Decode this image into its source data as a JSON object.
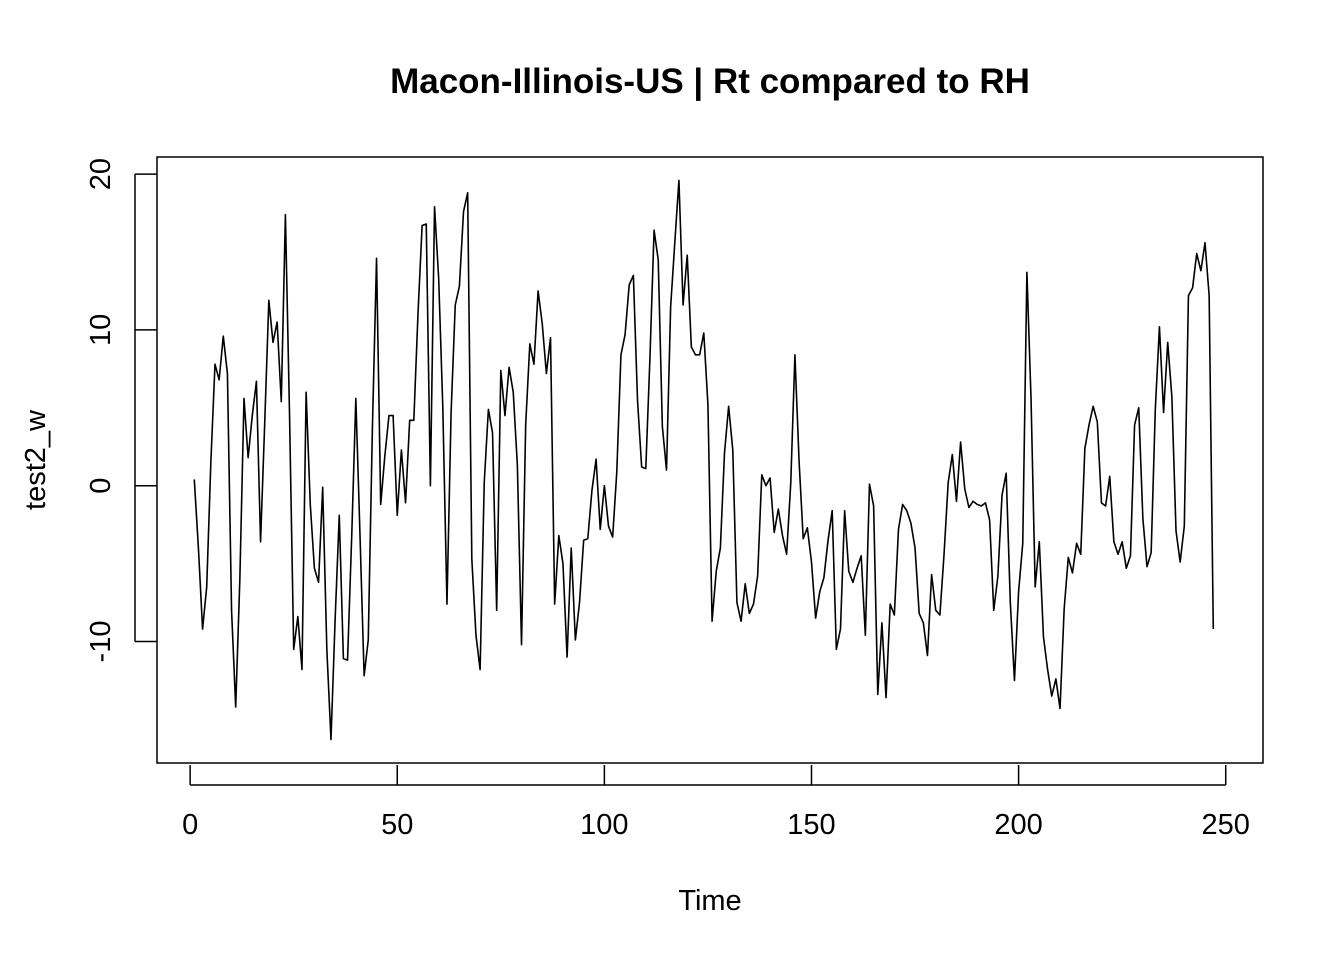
{
  "chart_data": {
    "type": "line",
    "title": "Macon-Illinois-US | Rt compared to RH",
    "xlabel": "Time",
    "ylabel": "test2_w",
    "xlim": [
      -8,
      259
    ],
    "ylim": [
      -17.8,
      21.1
    ],
    "x_ticks": [
      0,
      50,
      100,
      150,
      200,
      250
    ],
    "y_ticks": [
      -10,
      0,
      10,
      20
    ],
    "grid": false,
    "legend": "none",
    "line_color": "#000000",
    "x_start": 1,
    "values": [
      0.4,
      -4,
      -9.2,
      -6.5,
      1.5,
      7.8,
      6.8,
      9.6,
      7.2,
      -8,
      -14.2,
      -6,
      5.6,
      1.8,
      4.5,
      6.7,
      -3.6,
      4,
      11.9,
      9.2,
      10.5,
      5.4,
      17.4,
      4.5,
      -10.5,
      -8.4,
      -11.8,
      6,
      -1.2,
      -5.3,
      -6.2,
      -0.1,
      -10.5,
      -16.3,
      -8.6,
      -1.9,
      -11.1,
      -11.2,
      -3.3,
      5.6,
      -3.1,
      -12.2,
      -9.9,
      3.7,
      14.6,
      -1.2,
      1.9,
      4.5,
      4.5,
      -1.9,
      2.3,
      -1.1,
      4.2,
      4.2,
      11,
      16.7,
      16.8,
      0,
      17.9,
      13.3,
      5,
      -7.6,
      4.7,
      11.6,
      12.8,
      17.6,
      18.8,
      -4.7,
      -9.6,
      -11.8,
      0.2,
      4.9,
      3.4,
      -8,
      7.4,
      4.5,
      7.6,
      6,
      1.3,
      -10.2,
      3.9,
      9.1,
      7.8,
      12.5,
      10.4,
      7.2,
      9.5,
      -7.6,
      -3.2,
      -5,
      -11,
      -4,
      -9.9,
      -7.5,
      -3.5,
      -3.4,
      -0.3,
      1.7,
      -2.8,
      0,
      -2.6,
      -3.3,
      0.9,
      8.4,
      9.7,
      12.9,
      13.5,
      5.5,
      1.2,
      1.1,
      8.2,
      16.4,
      14.5,
      3.8,
      1,
      11.5,
      15.6,
      19.6,
      11.6,
      14.8,
      8.9,
      8.4,
      8.4,
      9.8,
      5.2,
      -8.7,
      -5.5,
      -4,
      2.1,
      5.1,
      2.3,
      -7.5,
      -8.7,
      -6.3,
      -8.2,
      -7.6,
      -5.8,
      0.7,
      0,
      0.5,
      -3,
      -1.5,
      -3.2,
      -4.4,
      0.2,
      8.4,
      1.6,
      -3.4,
      -2.7,
      -4.9,
      -8.5,
      -6.8,
      -5.9,
      -3.5,
      -1.6,
      -10.5,
      -9.2,
      -1.6,
      -5.5,
      -6.2,
      -5.3,
      -4.5,
      -9.6,
      0.1,
      -1.3,
      -13.4,
      -8.8,
      -13.6,
      -7.6,
      -8.3,
      -2.8,
      -1.2,
      -1.6,
      -2.4,
      -4,
      -8.2,
      -8.8,
      -10.9,
      -5.7,
      -8,
      -8.3,
      -4.4,
      0.2,
      2,
      -1,
      2.8,
      -0.2,
      -1.4,
      -1,
      -1.2,
      -1.3,
      -1.1,
      -2.2,
      -8,
      -5.8,
      -0.6,
      0.8,
      -7.5,
      -12.5,
      -6.8,
      -3.7,
      13.7,
      5.6,
      -6.5,
      -3.6,
      -9.7,
      -11.8,
      -13.5,
      -12.4,
      -14.3,
      -7.9,
      -4.6,
      -5.6,
      -3.7,
      -4.4,
      2.4,
      3.9,
      5.1,
      4.1,
      -1.1,
      -1.3,
      0.6,
      -3.6,
      -4.4,
      -3.6,
      -5.3,
      -4.5,
      3.9,
      5,
      -2.1,
      -5.2,
      -4.3,
      4.9,
      10.2,
      4.7,
      9.2,
      5.7,
      -2.9,
      -4.9,
      -2.6,
      12.2,
      12.7,
      14.9,
      13.8,
      15.6,
      12.2,
      -9.2
    ]
  }
}
